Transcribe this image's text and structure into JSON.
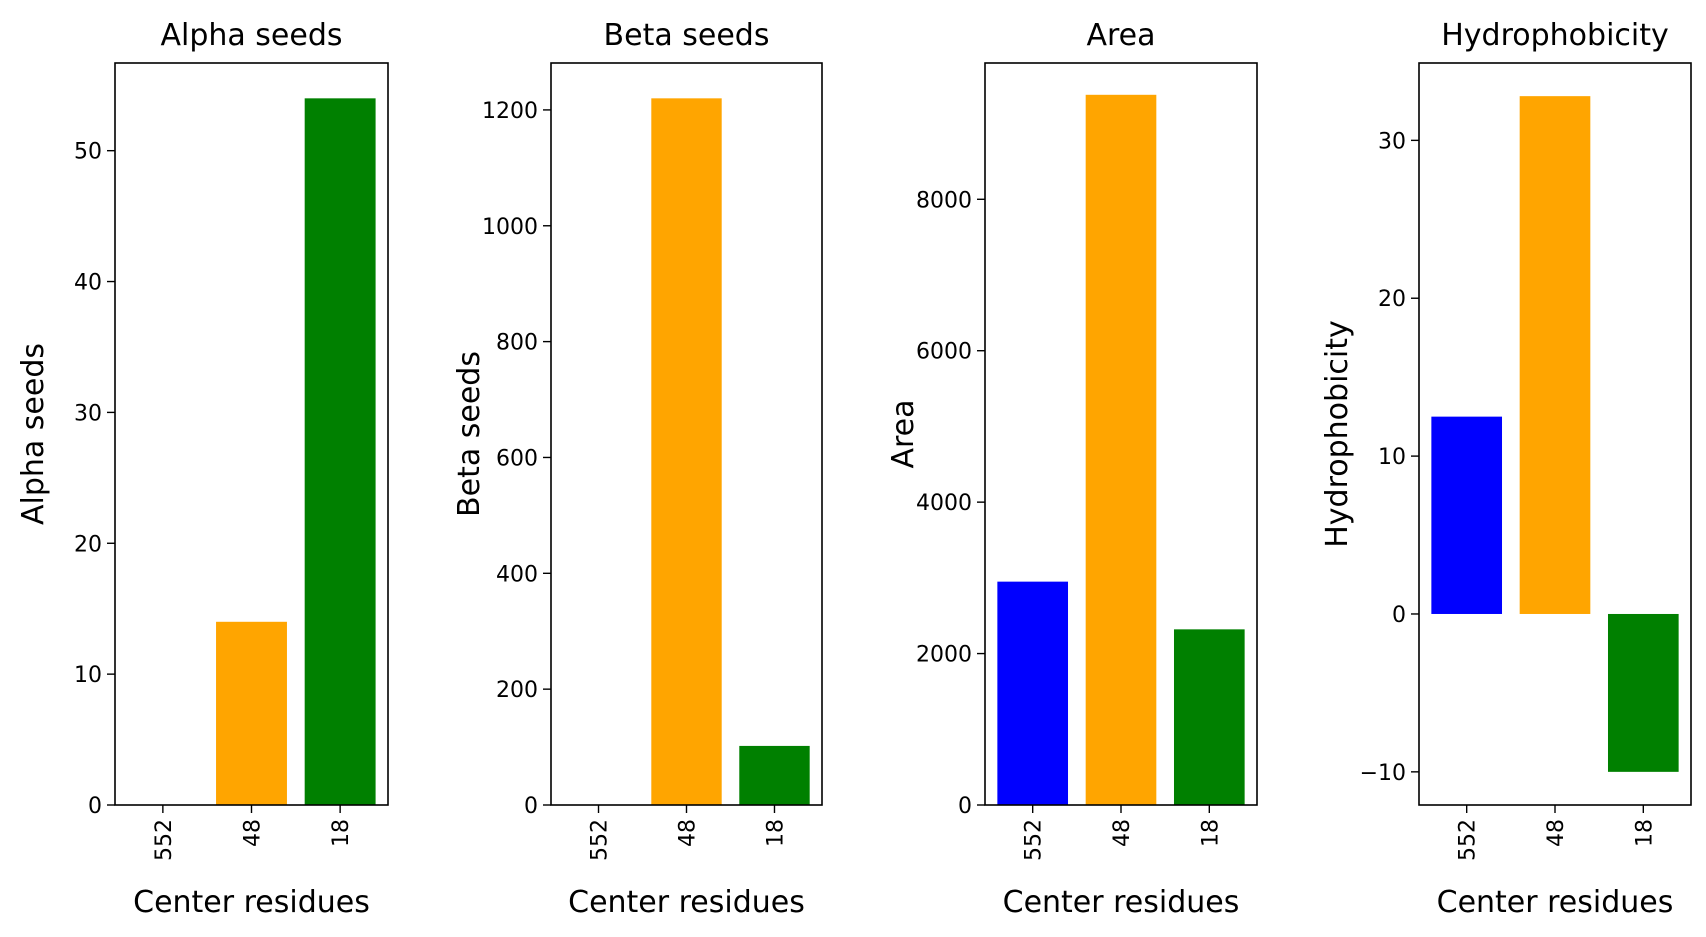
{
  "chart_data": [
    {
      "type": "bar",
      "title": "Alpha seeds",
      "xlabel": "Center residues",
      "ylabel": "Alpha seeds",
      "categories": [
        "552",
        "48",
        "18"
      ],
      "values": [
        0,
        14,
        54
      ],
      "colors": [
        "#0000ff",
        "#ffa500",
        "#008000"
      ],
      "ylim": [
        0,
        56.7
      ],
      "yticks": [
        0,
        10,
        20,
        30,
        40,
        50
      ],
      "ytick_labels": [
        "0",
        "10",
        "20",
        "30",
        "40",
        "50"
      ]
    },
    {
      "type": "bar",
      "title": "Beta seeds",
      "xlabel": "Center residues",
      "ylabel": "Beta seeds",
      "categories": [
        "552",
        "48",
        "18"
      ],
      "values": [
        0,
        1220,
        102
      ],
      "colors": [
        "#0000ff",
        "#ffa500",
        "#008000"
      ],
      "ylim": [
        0,
        1281
      ],
      "yticks": [
        0,
        200,
        400,
        600,
        800,
        1000,
        1200
      ],
      "ytick_labels": [
        "0",
        "200",
        "400",
        "600",
        "800",
        "1000",
        "1200"
      ]
    },
    {
      "type": "bar",
      "title": "Area",
      "xlabel": "Center residues",
      "ylabel": "Area",
      "categories": [
        "552",
        "48",
        "18"
      ],
      "values": [
        2950,
        9380,
        2320
      ],
      "colors": [
        "#0000ff",
        "#ffa500",
        "#008000"
      ],
      "ylim": [
        0,
        9800
      ],
      "yticks": [
        0,
        2000,
        4000,
        6000,
        8000
      ],
      "ytick_labels": [
        "0",
        "2000",
        "4000",
        "6000",
        "8000"
      ]
    },
    {
      "type": "bar",
      "title": "Hydrophobicity",
      "xlabel": "Center residues",
      "ylabel": "Hydrophobicity",
      "categories": [
        "552",
        "48",
        "18"
      ],
      "values": [
        12.5,
        32.8,
        -10
      ],
      "colors": [
        "#0000ff",
        "#ffa500",
        "#008000"
      ],
      "ylim": [
        -12.1,
        34.9
      ],
      "yticks": [
        -10,
        0,
        10,
        20,
        30
      ],
      "ytick_labels": [
        "−10",
        "0",
        "10",
        "20",
        "30"
      ]
    }
  ]
}
